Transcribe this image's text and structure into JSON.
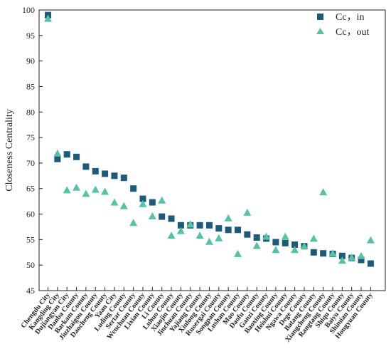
{
  "chart_data": {
    "type": "scatter",
    "title": "",
    "xlabel": "",
    "ylabel": "Closeness Centrality",
    "ylim": [
      45,
      100
    ],
    "yticks": [
      45,
      50,
      55,
      60,
      65,
      70,
      75,
      80,
      85,
      90,
      95,
      100
    ],
    "grid": false,
    "legend_position": "top-right",
    "categories": [
      "Chengdu City",
      "Kangding City",
      "Dujiangyan City",
      "Danba County",
      "Barkam County",
      "Jiuzhaigou County",
      "Daocheng County",
      "Yaan City",
      "Luding County",
      "Sertar County",
      "Wenchuan County",
      "Lixian County",
      "Li County",
      "Luhuo County",
      "Xiaojin County",
      "Jinchuan County",
      "Yajiang County",
      "Xinlong County",
      "Ruoergai County",
      "Songpan County",
      "Lushan County",
      "Mao County",
      "Daofu County",
      "Ganzi County",
      "Baoxing County",
      "Heishui County",
      "Ngawa County",
      "Dege County",
      "Batang County",
      "Xiangcheng County",
      "Rangtang County",
      "Shiqu County",
      "Baiyu County",
      "Shimian County",
      "Hongyuan County"
    ],
    "series": [
      {
        "name": "Cc，in",
        "marker": "square",
        "color": "#1e5a7a",
        "values": [
          99.0,
          70.8,
          71.7,
          71.2,
          69.3,
          68.4,
          67.9,
          67.5,
          67.1,
          65.0,
          63.0,
          62.3,
          59.5,
          59.1,
          57.8,
          57.8,
          57.8,
          57.8,
          57.2,
          56.9,
          56.9,
          56.0,
          55.4,
          55.2,
          54.5,
          54.3,
          54.0,
          53.7,
          52.5,
          52.3,
          52.2,
          51.8,
          51.4,
          51.0,
          50.3
        ]
      },
      {
        "name": "Cc，out",
        "marker": "triangle",
        "color": "#55c4a4",
        "values": [
          98.3,
          71.9,
          64.7,
          65.2,
          64.0,
          64.8,
          64.4,
          62.3,
          61.6,
          58.3,
          62.0,
          59.6,
          62.7,
          55.8,
          56.7,
          58.0,
          55.8,
          54.6,
          55.3,
          59.2,
          52.2,
          60.3,
          53.8,
          55.6,
          53.0,
          55.6,
          53.0,
          53.7,
          55.2,
          64.3,
          52.3,
          50.9,
          51.5,
          51.8,
          54.9
        ]
      }
    ]
  },
  "legend": {
    "in_label": "Cc，in",
    "out_label": "Cc，out"
  }
}
